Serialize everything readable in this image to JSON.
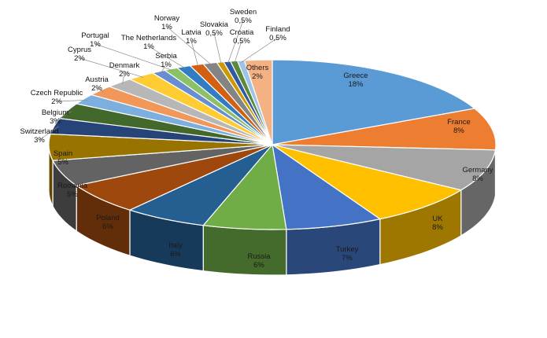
{
  "chart_data": {
    "type": "pie",
    "title": "",
    "legend": "none",
    "data_labels": "category and percent",
    "slices": [
      {
        "label": "Greece",
        "value_label": "18%",
        "value": 18,
        "color": "#5b9bd5"
      },
      {
        "label": "France",
        "value_label": "8%",
        "value": 8,
        "color": "#ed7d31"
      },
      {
        "label": "Germany",
        "value_label": "8%",
        "value": 8,
        "color": "#a5a5a5"
      },
      {
        "label": "UK",
        "value_label": "8%",
        "value": 8,
        "color": "#ffc000"
      },
      {
        "label": "Turkey",
        "value_label": "7%",
        "value": 7,
        "color": "#4472c4"
      },
      {
        "label": "Russia",
        "value_label": "6%",
        "value": 6,
        "color": "#70ad47"
      },
      {
        "label": "Italy",
        "value_label": "6%",
        "value": 6,
        "color": "#255e91"
      },
      {
        "label": "Poland",
        "value_label": "6%",
        "value": 6,
        "color": "#9e480e"
      },
      {
        "label": "Romania",
        "value_label": "5%",
        "value": 5,
        "color": "#636363"
      },
      {
        "label": "Spain",
        "value_label": "5%",
        "value": 5,
        "color": "#997300"
      },
      {
        "label": "Switzerland",
        "value_label": "3%",
        "value": 3,
        "color": "#264478"
      },
      {
        "label": "Belgium",
        "value_label": "3%",
        "value": 3,
        "color": "#43682b"
      },
      {
        "label": "Czech Republic",
        "value_label": "2%",
        "value": 2,
        "color": "#7cafdd"
      },
      {
        "label": "Austria",
        "value_label": "2%",
        "value": 2,
        "color": "#f1975a"
      },
      {
        "label": "Denmark",
        "value_label": "2%",
        "value": 2,
        "color": "#b7b7b7"
      },
      {
        "label": "Cyprus",
        "value_label": "2%",
        "value": 2,
        "color": "#ffcd33"
      },
      {
        "label": "Serbia",
        "value_label": "1%",
        "value": 1,
        "color": "#698ed0"
      },
      {
        "label": "Portugal",
        "value_label": "1%",
        "value": 1,
        "color": "#8cc168"
      },
      {
        "label": "The Netherlands",
        "value_label": "1%",
        "value": 1,
        "color": "#327dc2"
      },
      {
        "label": "Latvia",
        "value_label": "1%",
        "value": 1,
        "color": "#d26012"
      },
      {
        "label": "Norway",
        "value_label": "1%",
        "value": 1,
        "color": "#848484"
      },
      {
        "label": "Slovakia",
        "value_label": "0,5%",
        "value": 0.5,
        "color": "#cc9a00"
      },
      {
        "label": "Sweden",
        "value_label": "0,5%",
        "value": 0.5,
        "color": "#335aa1"
      },
      {
        "label": "Croatia",
        "value_label": "0,5%",
        "value": 0.5,
        "color": "#5a8a39"
      },
      {
        "label": "Finland",
        "value_label": "0,5%",
        "value": 0.5,
        "color": "#9dc3e6"
      },
      {
        "label": "Others",
        "value_label": "2%",
        "value": 2,
        "color": "#f4b183"
      }
    ]
  }
}
